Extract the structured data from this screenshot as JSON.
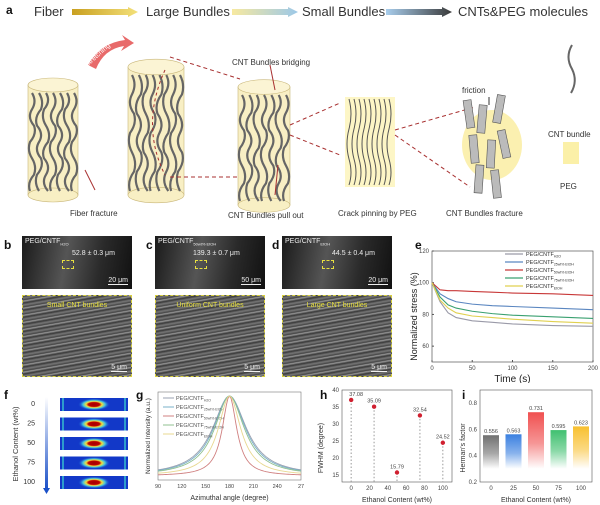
{
  "panel_labels": {
    "a": "a",
    "b": "b",
    "c": "c",
    "d": "d",
    "e": "e",
    "f": "f",
    "g": "g",
    "h": "h",
    "i": "i"
  },
  "flow": {
    "steps": [
      "Fiber",
      "Large Bundles",
      "Small Bundles",
      "CNTs&PEG molecules"
    ],
    "arrow_colors": [
      [
        "#c9a020",
        "#f3e07a"
      ],
      [
        "#f7e9a0",
        "#9cc8e8"
      ],
      [
        "#a8cdec",
        "#3a3a3a"
      ]
    ]
  },
  "diagram": {
    "stretching": "Stretching",
    "bridging": "CNT Bundles bridging",
    "friction": "friction",
    "fiber_fracture": "Fiber fracture",
    "pull_out": "CNT Bundles pull out",
    "crack_pinning": "Crack pinning by PEG",
    "bundles_fracture": "CNT Bundles fracture",
    "legend_bundle": "CNT bundle",
    "legend_peg": "PEG"
  },
  "sem": [
    {
      "title": "PEG/CNTF",
      "sub": "H2O",
      "measure": "52.8 ± 0.3 μm",
      "scale": "20 μm",
      "zoom_caption": "Small CNT bundles",
      "zoom_scale": "5 μm"
    },
    {
      "title": "PEG/CNTF",
      "sub": "50wt% EtOH",
      "measure": "139.3 ± 0.7 μm",
      "scale": "50 μm",
      "zoom_caption": "Uniform CNT bundles",
      "zoom_scale": "5 μm"
    },
    {
      "title": "PEG/CNTF",
      "sub": "EtOH",
      "measure": "44.5 ± 0.4 μm",
      "scale": "20 μm",
      "zoom_caption": "Large CNT bundles",
      "zoom_scale": "5 μm"
    }
  ],
  "chart_data": [
    {
      "id": "e",
      "type": "line",
      "xlabel": "Time (s)",
      "ylabel": "Normalized stress (%)",
      "xlim": [
        0,
        200
      ],
      "ylim": [
        50,
        120
      ],
      "xticks": [
        0,
        50,
        100,
        150,
        200
      ],
      "yticks": [
        60,
        80,
        100,
        120
      ],
      "legend": "top-right",
      "x": [
        0,
        10,
        20,
        30,
        50,
        75,
        100,
        150,
        200
      ],
      "series": [
        {
          "name": "PEG/CNTF",
          "sub": "H2O",
          "color": "#9a9aa8",
          "values": [
            100,
            88,
            81,
            78,
            76,
            75,
            74,
            73,
            72.5
          ]
        },
        {
          "name": "PEG/CNTF",
          "sub": "25wt% EtOH",
          "color": "#5a86c0",
          "values": [
            100,
            93,
            90,
            88,
            86.5,
            85.5,
            85,
            84,
            83
          ]
        },
        {
          "name": "PEG/CNTF",
          "sub": "50wt% EtOH",
          "color": "#c83838",
          "values": [
            100,
            95.5,
            95,
            95,
            94.5,
            94,
            93.5,
            93,
            92
          ]
        },
        {
          "name": "PEG/CNTF",
          "sub": "75wt% EtOH",
          "color": "#3aa070",
          "values": [
            100,
            91,
            86,
            84,
            82,
            80.5,
            79.5,
            78.5,
            77.5
          ]
        },
        {
          "name": "PEG/CNTF",
          "sub": "EtOH",
          "color": "#e0d050",
          "values": [
            100,
            89,
            84,
            81,
            79,
            78,
            77,
            75.5,
            74.5
          ]
        }
      ]
    },
    {
      "id": "f",
      "type": "heatmap",
      "ylabel": "Ethanol Content (wt%)",
      "rows": [
        "0",
        "25",
        "50",
        "75",
        "100"
      ]
    },
    {
      "id": "g",
      "type": "line",
      "xlabel": "Azimuthal angle (degree)",
      "ylabel": "Normalized Intensity (a.u.)",
      "xlim": [
        90,
        270
      ],
      "xticks": [
        "90",
        "120",
        "150",
        "180",
        "210",
        "240",
        "27"
      ],
      "peak_center": 180,
      "series": [
        {
          "name": "PEG/CNTF",
          "sub": "H2O",
          "color": "#9aa0b0",
          "fwhm": 37.08
        },
        {
          "name": "PEG/CNTF",
          "sub": "25wt% EtOH",
          "color": "#7ab0c8",
          "fwhm": 35.09
        },
        {
          "name": "PEG/CNTF",
          "sub": "50wt% EtOH",
          "color": "#d08080",
          "fwhm": 15.79
        },
        {
          "name": "PEG/CNTF",
          "sub": "75wt% EtOH",
          "color": "#90c090",
          "fwhm": 32.54
        },
        {
          "name": "PEG/CNTF",
          "sub": "EtOH",
          "color": "#e8d890",
          "fwhm": 24.52
        }
      ]
    },
    {
      "id": "h",
      "type": "scatter",
      "xlabel": "Ethanol Content (wt%)",
      "ylabel": "FWHM (degree)",
      "xlim": [
        -10,
        110
      ],
      "ylim": [
        13,
        40
      ],
      "xticks": [
        0,
        20,
        40,
        60,
        80,
        100
      ],
      "yticks": [
        15,
        20,
        25,
        30,
        35,
        40
      ],
      "x": [
        0,
        25,
        50,
        75,
        100
      ],
      "values": [
        37.08,
        35.09,
        15.79,
        32.54,
        24.52
      ],
      "labels": [
        "37.08",
        "35.09",
        "15.79",
        "32.54",
        "24.52"
      ],
      "color": "#d02030"
    },
    {
      "id": "i",
      "type": "bar",
      "xlabel": "Ethanol Content (wt%)",
      "ylabel": "Herman's factor",
      "ylim": [
        0.2,
        0.9
      ],
      "yticks": [
        0.2,
        0.4,
        0.6,
        0.8
      ],
      "categories": [
        "0",
        "25",
        "50",
        "75",
        "100"
      ],
      "values": [
        0.556,
        0.563,
        0.731,
        0.595,
        0.623
      ],
      "labels": [
        "0.556",
        "0.563",
        "0.731",
        "0.595",
        "0.623"
      ],
      "colors": [
        "#707070",
        "#3a80e0",
        "#f05050",
        "#40c070",
        "#f8c030"
      ]
    }
  ]
}
